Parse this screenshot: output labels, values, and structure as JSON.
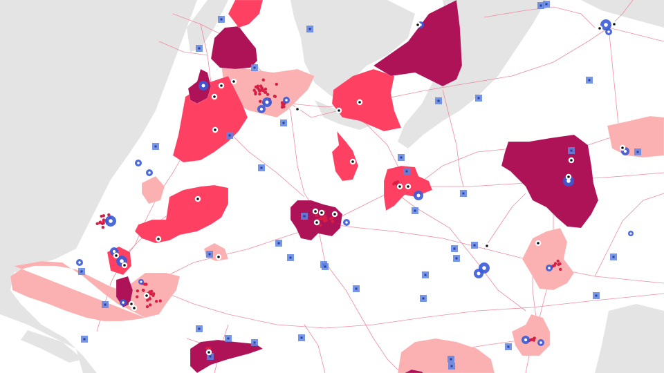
{
  "map": {
    "colors": {
      "sea": "#e4e4e4",
      "land": "#ffffff",
      "rail": "#f07d92",
      "region_light": "#fbb1b1",
      "region_mid": "#fe4162",
      "region_dark": "#ae1257",
      "marker_blue": "#3a5bd6",
      "square_blue": "#5e85e3",
      "dot_red": "#d81e44"
    },
    "legend": []
  }
}
